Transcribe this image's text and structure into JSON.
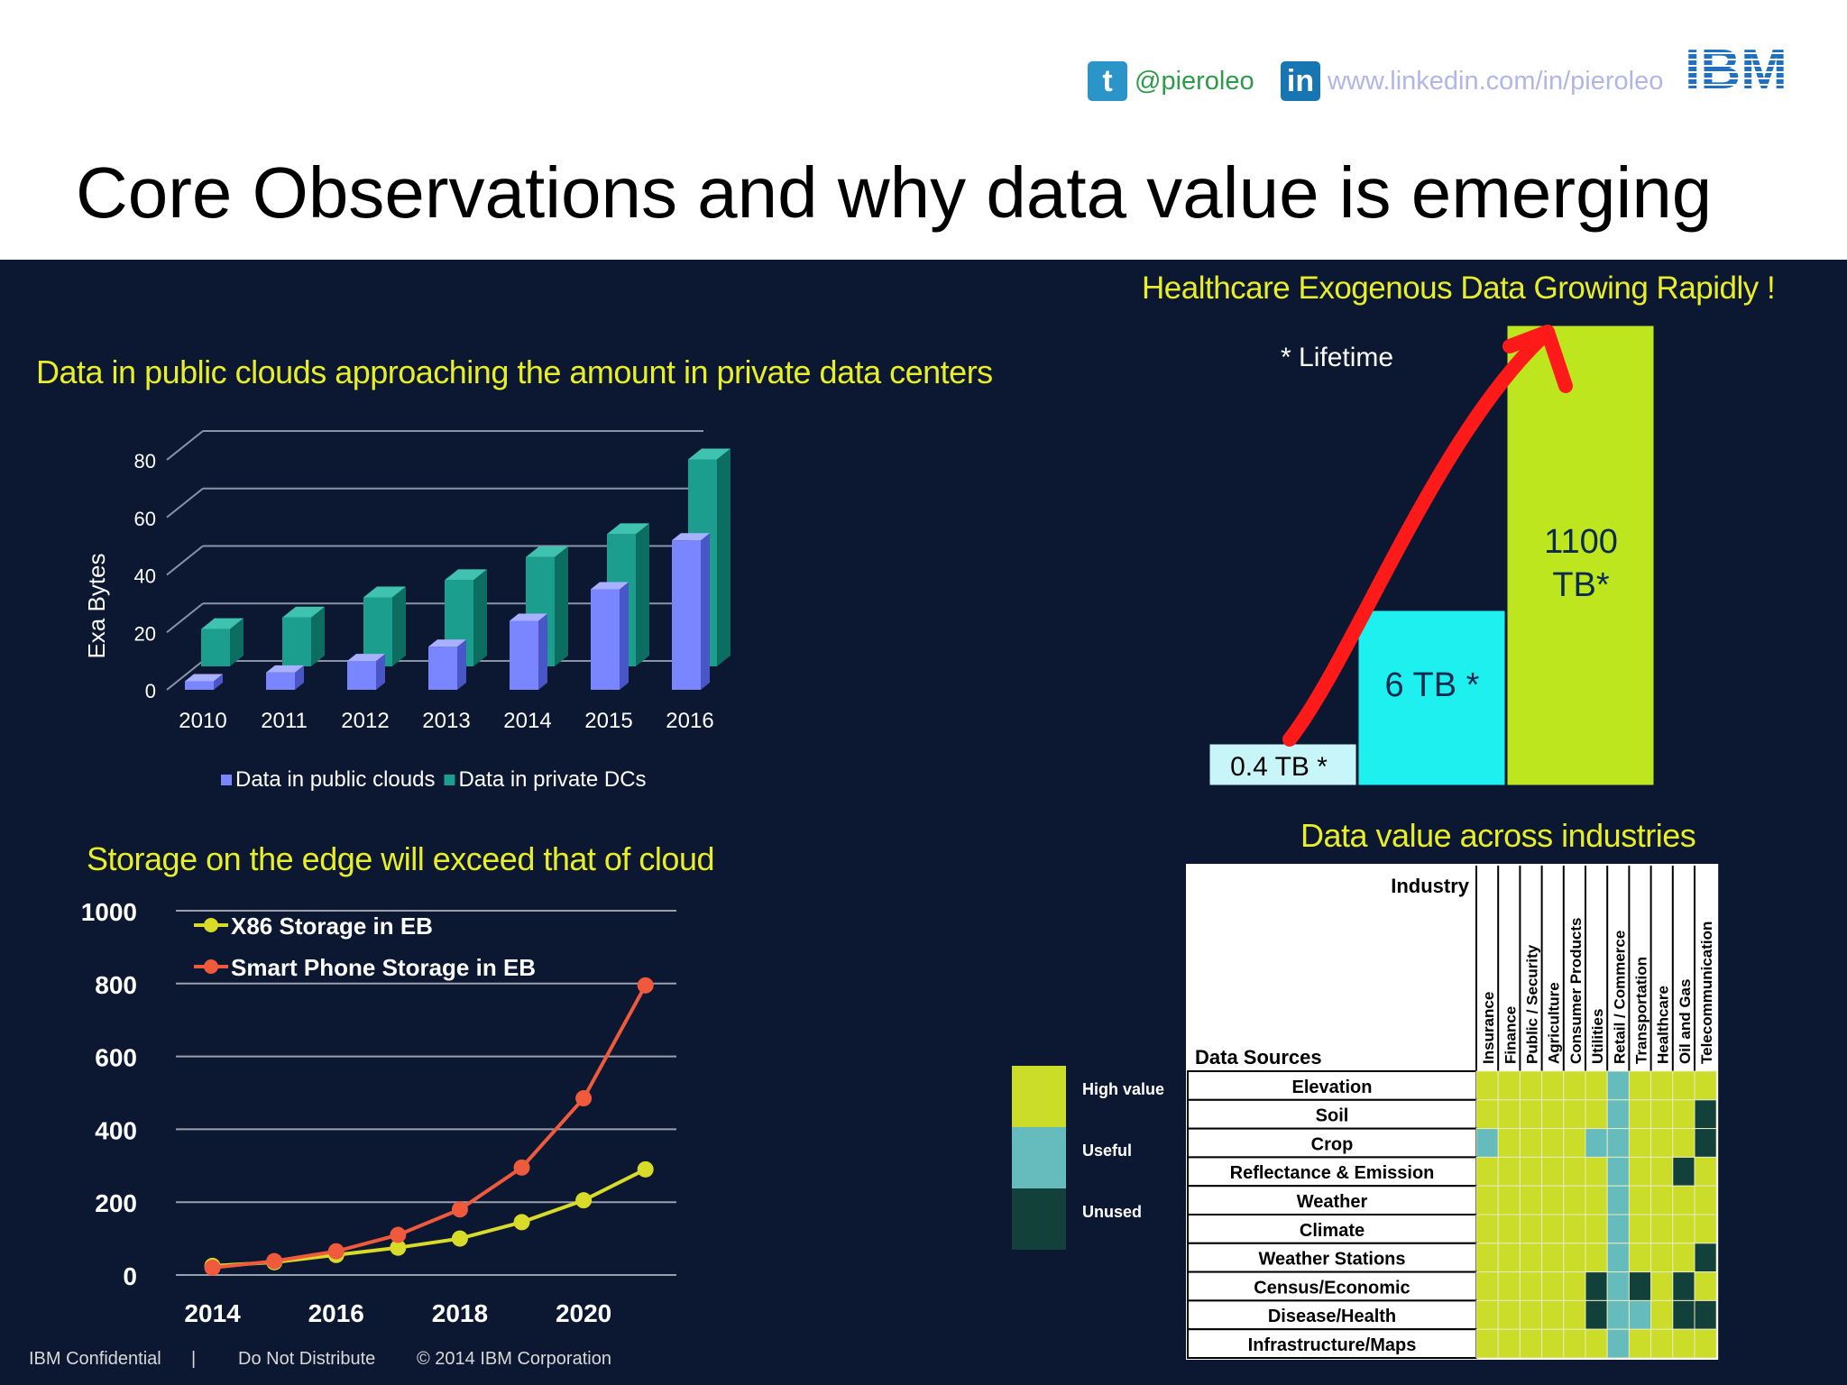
{
  "header": {
    "twitter_handle": "@pieroleo",
    "linkedin_url": "www.linkedin.com/in/pieroleo",
    "logo_text": "IBM",
    "title": "Core Observations and why data value is emerging"
  },
  "icons": {
    "twitter": "twitter-icon",
    "linkedin": "linkedin-icon"
  },
  "colors": {
    "panel_bg": "#0c1831",
    "title_yellow": "#e8ee28",
    "public_cloud": "#7a86ff",
    "private_dc": "#1b9e8e",
    "x86": "#d8dc28",
    "smartphone": "#f05a3c",
    "high_value": "#cbdd28",
    "useful": "#66bcbc",
    "unused": "#12403a"
  },
  "footer": {
    "confidential": "IBM Confidential",
    "separator": "|",
    "distribute": "Do Not Distribute",
    "copyright": "© 2014 IBM Corporation"
  },
  "chart_data": [
    {
      "type": "bar",
      "title": "Data in public clouds approaching the amount in private data centers",
      "ylabel": "Exa Bytes",
      "xlabel": "",
      "ylim": [
        0,
        80
      ],
      "yticks": [
        "0",
        "20",
        "40",
        "60",
        "80"
      ],
      "categories": [
        "2010",
        "2011",
        "2012",
        "2013",
        "2014",
        "2015",
        "2016"
      ],
      "series": [
        {
          "name": "Data in public clouds",
          "values": [
            3,
            6,
            10,
            15,
            24,
            35,
            52
          ]
        },
        {
          "name": "Data in private DCs",
          "values": [
            13,
            17,
            24,
            30,
            38,
            46,
            72
          ]
        }
      ],
      "legend": "bottom",
      "grid": true
    },
    {
      "type": "line",
      "title": "Storage on the edge will exceed that of cloud",
      "xlabel": "",
      "ylabel": "",
      "x": [
        2014,
        2015,
        2016,
        2017,
        2018,
        2019,
        2020,
        2021
      ],
      "xticks": [
        "2014",
        "2016",
        "2018",
        "2020"
      ],
      "ylim": [
        0,
        1000
      ],
      "yticks": [
        "0",
        "200",
        "400",
        "600",
        "800",
        "1000"
      ],
      "series": [
        {
          "name": "X86 Storage in EB",
          "values": [
            25,
            35,
            55,
            75,
            100,
            145,
            205,
            290
          ]
        },
        {
          "name": "Smart Phone Storage in EB",
          "values": [
            20,
            38,
            65,
            110,
            180,
            295,
            485,
            795
          ]
        }
      ],
      "legend": "top-left",
      "grid": true
    },
    {
      "type": "bar",
      "title": "Healthcare Exogenous Data Growing Rapidly !",
      "note": "* Lifetime",
      "categories": [
        "",
        "",
        ""
      ],
      "values": [
        0.4,
        6,
        1100
      ],
      "value_labels": [
        "0.4 TB *",
        "6 TB *",
        "1100 TB*"
      ]
    },
    {
      "type": "heatmap",
      "title": "Data value across industries",
      "row_header": "Data Sources",
      "col_header": "Industry",
      "columns": [
        "Insurance",
        "Finance",
        "Public / Security",
        "Agriculture",
        "Consumer Products",
        "Utilities",
        "Retail / Commerce",
        "Transportation",
        "Healthcare",
        "Oil and Gas",
        "Telecommunication"
      ],
      "rows": [
        "Elevation",
        "Soil",
        "Crop",
        "Reflectance & Emission",
        "Weather",
        "Climate",
        "Weather Stations",
        "Census/Economic",
        "Disease/Health",
        "Infrastructure/Maps"
      ],
      "legend": [
        "High value",
        "Useful",
        "Unused"
      ],
      "cells": [
        [
          "H",
          "H",
          "H",
          "H",
          "H",
          "H",
          "U",
          "H",
          "H",
          "H",
          "H"
        ],
        [
          "H",
          "H",
          "H",
          "H",
          "H",
          "H",
          "U",
          "H",
          "H",
          "H",
          "N"
        ],
        [
          "U",
          "H",
          "H",
          "H",
          "H",
          "U",
          "U",
          "H",
          "H",
          "H",
          "N"
        ],
        [
          "H",
          "H",
          "H",
          "H",
          "H",
          "H",
          "U",
          "H",
          "H",
          "N",
          "H"
        ],
        [
          "H",
          "H",
          "H",
          "H",
          "H",
          "H",
          "U",
          "H",
          "H",
          "H",
          "H"
        ],
        [
          "H",
          "H",
          "H",
          "H",
          "H",
          "H",
          "U",
          "H",
          "H",
          "H",
          "H"
        ],
        [
          "H",
          "H",
          "H",
          "H",
          "H",
          "H",
          "U",
          "H",
          "H",
          "H",
          "N"
        ],
        [
          "H",
          "H",
          "H",
          "H",
          "H",
          "N",
          "U",
          "N",
          "H",
          "N",
          "H"
        ],
        [
          "H",
          "H",
          "H",
          "H",
          "H",
          "N",
          "U",
          "U",
          "H",
          "N",
          "N"
        ],
        [
          "H",
          "H",
          "H",
          "H",
          "H",
          "H",
          "U",
          "H",
          "H",
          "H",
          "H"
        ]
      ]
    }
  ]
}
